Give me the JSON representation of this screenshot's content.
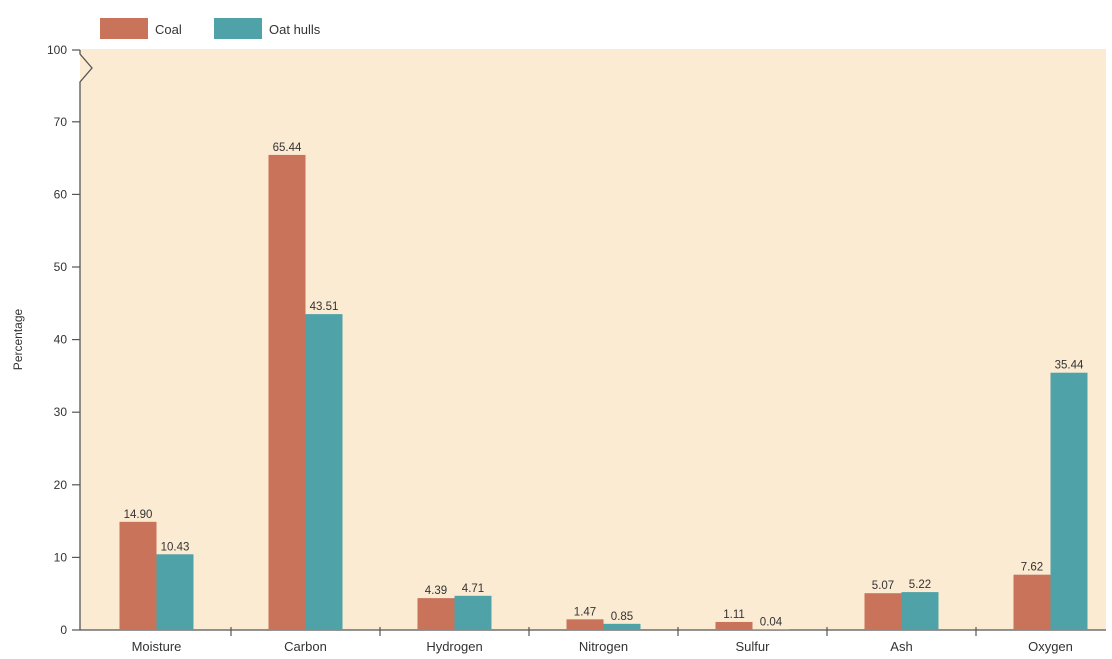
{
  "chart_data": {
    "type": "bar",
    "categories": [
      "Moisture",
      "Carbon",
      "Hydrogen",
      "Nitrogen",
      "Sulfur",
      "Ash",
      "Oxygen"
    ],
    "series": [
      {
        "name": "Coal",
        "values": [
          14.9,
          65.44,
          4.39,
          1.47,
          1.11,
          5.07,
          7.62
        ],
        "labels": [
          "14.90",
          "65.44",
          "4.39",
          "1.47",
          "1.11",
          "5.07",
          "7.62"
        ],
        "color": "#c8735a"
      },
      {
        "name": "Oat hulls",
        "values": [
          10.43,
          43.51,
          4.71,
          0.85,
          0.04,
          5.22,
          35.44
        ],
        "labels": [
          "10.43",
          "43.51",
          "4.71",
          "0.85",
          "0.04",
          "5.22",
          "35.44"
        ],
        "color": "#4fa3a8"
      }
    ],
    "xlabel": "",
    "ylabel": "Percentage",
    "yticks": [
      "0",
      "10",
      "20",
      "30",
      "40",
      "50",
      "60",
      "70",
      "100"
    ],
    "ylim": [
      0,
      100
    ],
    "axis_break": "between 70 and 100",
    "legend_position": "top-left",
    "grid": false,
    "background": "#fcebd3"
  }
}
